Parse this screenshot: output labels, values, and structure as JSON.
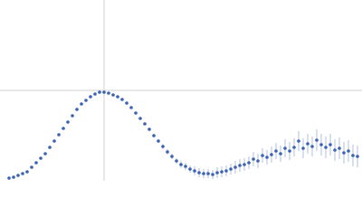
{
  "chart_data": {
    "type": "scatter",
    "color": "#3b63b5",
    "error_color": "#9db0da",
    "x": [
      10,
      15,
      20,
      25,
      30,
      35,
      40,
      45,
      50,
      55,
      60,
      65,
      70,
      75,
      80,
      85,
      90,
      95,
      100,
      105,
      110,
      115,
      120,
      125,
      130,
      135,
      140,
      145,
      150,
      155,
      160,
      165,
      170,
      175,
      180,
      185,
      190,
      195,
      200,
      205,
      210,
      215,
      220,
      225,
      230,
      235,
      240,
      245,
      250,
      255,
      260,
      265,
      270,
      275,
      280,
      285,
      290,
      295,
      300,
      305,
      310,
      315,
      320,
      325,
      330,
      335,
      340,
      345,
      350,
      355,
      360,
      365,
      370,
      375,
      380,
      385,
      390,
      395
    ],
    "values": [
      3,
      4,
      6,
      8,
      10,
      15,
      20,
      25,
      30,
      37,
      44,
      51,
      58,
      65,
      72,
      79,
      85,
      89,
      93,
      96,
      98,
      98,
      97,
      95,
      93,
      90,
      86,
      81,
      75,
      69,
      63,
      57,
      50,
      44,
      38,
      32,
      27,
      22,
      18,
      16,
      13,
      11,
      9,
      8,
      8,
      7,
      9,
      10,
      11,
      13,
      15,
      17,
      18,
      20,
      24,
      22,
      28,
      26,
      29,
      33,
      30,
      36,
      33,
      37,
      44,
      36,
      41,
      38,
      45,
      40,
      37,
      40,
      34,
      36,
      31,
      33,
      28,
      27
    ],
    "errors": [
      0.5,
      0.5,
      0.5,
      0.5,
      0.5,
      0.5,
      0.5,
      0.5,
      0.5,
      0.5,
      0.5,
      0.5,
      0.5,
      0.5,
      0.5,
      0.5,
      0.5,
      0.5,
      0.5,
      0.5,
      0.5,
      0.5,
      0.5,
      0.5,
      0.5,
      0.5,
      1,
      1,
      1,
      1.5,
      1.5,
      2,
      2,
      2,
      2.5,
      3,
      3,
      3,
      4,
      4,
      4,
      5,
      5,
      5,
      5,
      5,
      6,
      6,
      6,
      6,
      7,
      7,
      7,
      7,
      8,
      8,
      8,
      8,
      9,
      9,
      9,
      10,
      10,
      10,
      11,
      11,
      11,
      11,
      12,
      12,
      12,
      12,
      12,
      12,
      12,
      12,
      12,
      12
    ],
    "xlim": [
      0,
      400
    ],
    "ylim": [
      0,
      200
    ],
    "xticks": [
      115
    ],
    "yticks": [
      100
    ],
    "grid": true,
    "tick_labels": false
  }
}
